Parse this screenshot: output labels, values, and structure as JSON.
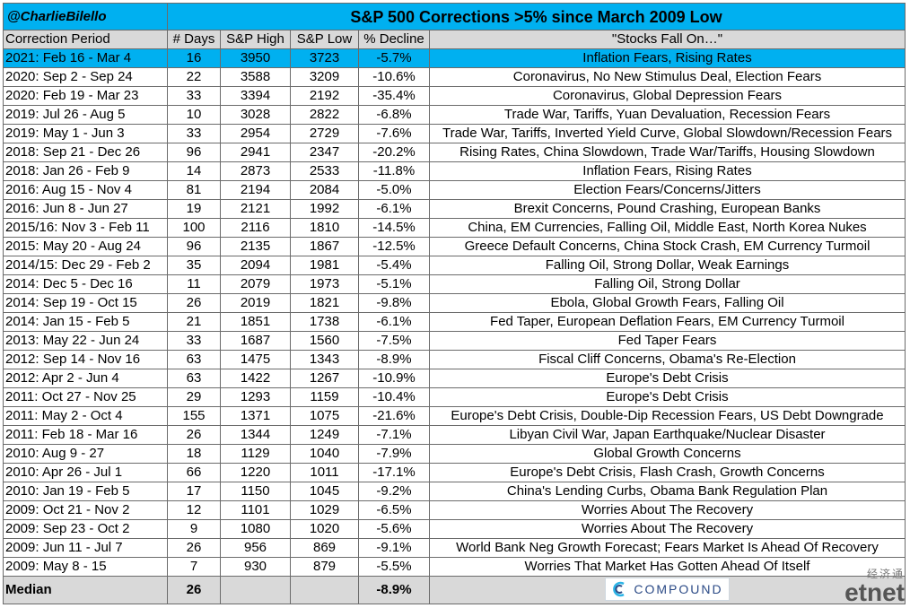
{
  "header": {
    "handle": "@CharlieBilello",
    "title": "S&P 500 Corrections >5% since March 2009 Low"
  },
  "columns": [
    "Correction Period",
    "# Days",
    "S&P High",
    "S&P Low",
    "% Decline",
    "\"Stocks Fall On…\""
  ],
  "rows": [
    {
      "period": "2021: Feb 16 - Mar 4",
      "days": "16",
      "high": "3950",
      "low": "3723",
      "decline": "-5.7%",
      "cause": "Inflation Fears, Rising Rates"
    },
    {
      "period": "2020: Sep 2 - Sep 24",
      "days": "22",
      "high": "3588",
      "low": "3209",
      "decline": "-10.6%",
      "cause": "Coronavirus, No New Stimulus Deal, Election Fears"
    },
    {
      "period": "2020: Feb 19 - Mar 23",
      "days": "33",
      "high": "3394",
      "low": "2192",
      "decline": "-35.4%",
      "cause": "Coronavirus, Global Depression Fears"
    },
    {
      "period": "2019: Jul 26 - Aug 5",
      "days": "10",
      "high": "3028",
      "low": "2822",
      "decline": "-6.8%",
      "cause": "Trade War, Tariffs, Yuan Devaluation, Recession Fears"
    },
    {
      "period": "2019: May 1 - Jun 3",
      "days": "33",
      "high": "2954",
      "low": "2729",
      "decline": "-7.6%",
      "cause": "Trade War, Tariffs, Inverted Yield Curve, Global Slowdown/Recession Fears"
    },
    {
      "period": "2018: Sep 21 - Dec 26",
      "days": "96",
      "high": "2941",
      "low": "2347",
      "decline": "-20.2%",
      "cause": "Rising Rates, China Slowdown, Trade War/Tariffs, Housing Slowdown"
    },
    {
      "period": "2018: Jan 26 - Feb 9",
      "days": "14",
      "high": "2873",
      "low": "2533",
      "decline": "-11.8%",
      "cause": "Inflation Fears, Rising Rates"
    },
    {
      "period": "2016: Aug 15 - Nov 4",
      "days": "81",
      "high": "2194",
      "low": "2084",
      "decline": "-5.0%",
      "cause": "Election Fears/Concerns/Jitters"
    },
    {
      "period": "2016: Jun 8 - Jun 27",
      "days": "19",
      "high": "2121",
      "low": "1992",
      "decline": "-6.1%",
      "cause": "Brexit Concerns, Pound Crashing, European Banks"
    },
    {
      "period": "2015/16: Nov 3 - Feb 11",
      "days": "100",
      "high": "2116",
      "low": "1810",
      "decline": "-14.5%",
      "cause": "China, EM Currencies, Falling Oil, Middle East, North Korea Nukes"
    },
    {
      "period": "2015: May 20 - Aug 24",
      "days": "96",
      "high": "2135",
      "low": "1867",
      "decline": "-12.5%",
      "cause": "Greece Default Concerns, China Stock Crash, EM Currency Turmoil"
    },
    {
      "period": "2014/15: Dec 29 - Feb 2",
      "days": "35",
      "high": "2094",
      "low": "1981",
      "decline": "-5.4%",
      "cause": "Falling Oil, Strong Dollar, Weak Earnings"
    },
    {
      "period": "2014: Dec 5 - Dec 16",
      "days": "11",
      "high": "2079",
      "low": "1973",
      "decline": "-5.1%",
      "cause": "Falling Oil, Strong Dollar"
    },
    {
      "period": "2014: Sep 19 - Oct 15",
      "days": "26",
      "high": "2019",
      "low": "1821",
      "decline": "-9.8%",
      "cause": "Ebola, Global Growth Fears, Falling Oil"
    },
    {
      "period": "2014: Jan 15 - Feb 5",
      "days": "21",
      "high": "1851",
      "low": "1738",
      "decline": "-6.1%",
      "cause": "Fed Taper, European Deflation Fears, EM Currency Turmoil"
    },
    {
      "period": "2013: May 22 - Jun 24",
      "days": "33",
      "high": "1687",
      "low": "1560",
      "decline": "-7.5%",
      "cause": "Fed Taper Fears"
    },
    {
      "period": "2012: Sep 14 - Nov 16",
      "days": "63",
      "high": "1475",
      "low": "1343",
      "decline": "-8.9%",
      "cause": "Fiscal Cliff Concerns, Obama's Re-Election"
    },
    {
      "period": "2012: Apr 2 - Jun 4",
      "days": "63",
      "high": "1422",
      "low": "1267",
      "decline": "-10.9%",
      "cause": "Europe's Debt Crisis"
    },
    {
      "period": "2011: Oct 27 - Nov 25",
      "days": "29",
      "high": "1293",
      "low": "1159",
      "decline": "-10.4%",
      "cause": "Europe's Debt Crisis"
    },
    {
      "period": "2011: May 2 - Oct 4",
      "days": "155",
      "high": "1371",
      "low": "1075",
      "decline": "-21.6%",
      "cause": "Europe's Debt Crisis, Double-Dip Recession Fears, US Debt Downgrade"
    },
    {
      "period": "2011: Feb 18 - Mar 16",
      "days": "26",
      "high": "1344",
      "low": "1249",
      "decline": "-7.1%",
      "cause": "Libyan Civil War, Japan Earthquake/Nuclear Disaster"
    },
    {
      "period": "2010: Aug 9 - 27",
      "days": "18",
      "high": "1129",
      "low": "1040",
      "decline": "-7.9%",
      "cause": "Global Growth Concerns"
    },
    {
      "period": "2010: Apr 26 - Jul 1",
      "days": "66",
      "high": "1220",
      "low": "1011",
      "decline": "-17.1%",
      "cause": "Europe's Debt Crisis, Flash Crash, Growth Concerns"
    },
    {
      "period": "2010: Jan 19 - Feb 5",
      "days": "17",
      "high": "1150",
      "low": "1045",
      "decline": "-9.2%",
      "cause": "China's Lending Curbs, Obama Bank Regulation Plan"
    },
    {
      "period": "2009: Oct 21 - Nov 2",
      "days": "12",
      "high": "1101",
      "low": "1029",
      "decline": "-6.5%",
      "cause": "Worries About The Recovery"
    },
    {
      "period": "2009: Sep 23 - Oct 2",
      "days": "9",
      "high": "1080",
      "low": "1020",
      "decline": "-5.6%",
      "cause": "Worries About The Recovery"
    },
    {
      "period": "2009: Jun 11 - Jul 7",
      "days": "26",
      "high": "956",
      "low": "869",
      "decline": "-9.1%",
      "cause": "World Bank Neg Growth Forecast; Fears Market Is Ahead Of Recovery"
    },
    {
      "period": "2009: May 8 - 15",
      "days": "7",
      "high": "930",
      "low": "879",
      "decline": "-5.5%",
      "cause": "Worries That Market Has Gotten Ahead Of Itself"
    }
  ],
  "median": {
    "label": "Median",
    "days": "26",
    "decline": "-8.9%"
  },
  "logo": {
    "text": "COMPOUND",
    "icon": "compound-logo-icon"
  },
  "watermark": {
    "top": "经济通",
    "brand_left": "et",
    "brand_right": "net"
  },
  "colors": {
    "highlight": "#00b0f0",
    "header_gray": "#d9d9d9",
    "grid": "#6b6b6b",
    "watermark_red": "#c8202c"
  },
  "chart_data": {
    "type": "table",
    "title": "S&P 500 Corrections >5% since March 2009 Low",
    "columns": [
      "Correction Period",
      "# Days",
      "S&P High",
      "S&P Low",
      "% Decline",
      "\"Stocks Fall On…\""
    ],
    "highlighted_row": 0,
    "summary": {
      "label": "Median",
      "# Days": 26,
      "% Decline": -8.9
    }
  }
}
